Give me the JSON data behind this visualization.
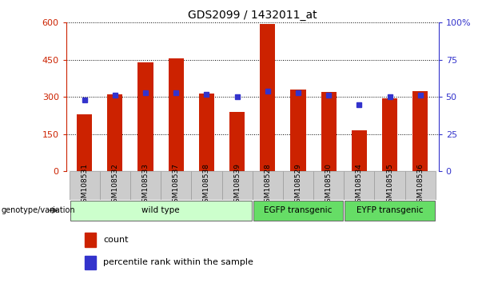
{
  "title": "GDS2099 / 1432011_at",
  "samples": [
    "GSM108531",
    "GSM108532",
    "GSM108533",
    "GSM108537",
    "GSM108538",
    "GSM108539",
    "GSM108528",
    "GSM108529",
    "GSM108530",
    "GSM108534",
    "GSM108535",
    "GSM108536"
  ],
  "counts": [
    230,
    310,
    440,
    455,
    315,
    240,
    595,
    330,
    320,
    165,
    295,
    325
  ],
  "percentiles": [
    48,
    51,
    53,
    53,
    52,
    50,
    54,
    53,
    51,
    45,
    50,
    51
  ],
  "groups": [
    {
      "label": "wild type",
      "start": 0,
      "end": 6,
      "color": "#ccffcc"
    },
    {
      "label": "EGFP transgenic",
      "start": 6,
      "end": 9,
      "color": "#66dd66"
    },
    {
      "label": "EYFP transgenic",
      "start": 9,
      "end": 12,
      "color": "#66dd66"
    }
  ],
  "bar_color": "#cc2200",
  "dot_color": "#3333cc",
  "left_yticks": [
    0,
    150,
    300,
    450,
    600
  ],
  "right_yticks": [
    0,
    25,
    50,
    75,
    100
  ],
  "left_tick_color": "#cc2200",
  "right_tick_color": "#3333cc",
  "genotype_label": "genotype/variation",
  "legend_count_label": "count",
  "legend_percentile_label": "percentile rank within the sample",
  "xlabels_bg": "#cccccc",
  "fig_width": 6.13,
  "fig_height": 3.54,
  "dpi": 100
}
